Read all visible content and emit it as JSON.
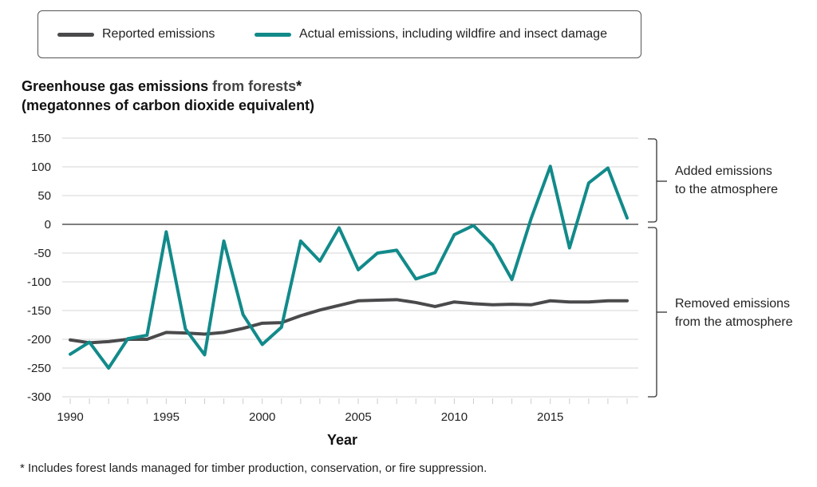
{
  "legend": {
    "reported": "Reported emissions",
    "actual": "Actual emissions, including wildfire and insect damage"
  },
  "title": {
    "line1_a": "Greenhouse gas emissions ",
    "line1_b": "from forests",
    "line1_c": "*",
    "line2": "(megatonnes of carbon dioxide equivalent)"
  },
  "annotations": {
    "added_1": "Added emissions",
    "added_2": "to the atmosphere",
    "removed_1": "Removed emissions",
    "removed_2": "from the atmosphere"
  },
  "footnote": "* Includes forest lands managed for timber production, conservation, or fire suppression.",
  "colors": {
    "reported": "#4a4a4c",
    "actual": "#128a8a"
  },
  "chart_data": {
    "type": "line",
    "xlabel": "Year",
    "ylabel": "",
    "ylim": [
      -300,
      150
    ],
    "xlim": [
      1990,
      2019
    ],
    "yticks": [
      150,
      100,
      50,
      0,
      -50,
      -100,
      -150,
      -200,
      -250,
      -300
    ],
    "xticks": [
      1990,
      1995,
      2000,
      2005,
      2010,
      2015
    ],
    "grid": true,
    "legend_position": "top",
    "x": [
      1990,
      1991,
      1992,
      1993,
      1994,
      1995,
      1996,
      1997,
      1998,
      1999,
      2000,
      2001,
      2002,
      2003,
      2004,
      2005,
      2006,
      2007,
      2008,
      2009,
      2010,
      2011,
      2012,
      2013,
      2014,
      2015,
      2016,
      2017,
      2018,
      2019
    ],
    "series": [
      {
        "name": "Reported emissions",
        "color": "#4a4a4c",
        "values": [
          -201,
          -206,
          -204,
          -200,
          -200,
          -188,
          -189,
          -191,
          -188,
          -181,
          -172,
          -171,
          -159,
          -149,
          -141,
          -133,
          -132,
          -131,
          -136,
          -143,
          -135,
          -138,
          -140,
          -139,
          -140,
          -133,
          -135,
          -135,
          -133,
          -133
        ]
      },
      {
        "name": "Actual emissions, including wildfire and insect damage",
        "color": "#128a8a",
        "values": [
          -226,
          -205,
          -250,
          -199,
          -193,
          -13,
          -182,
          -227,
          -29,
          -157,
          -209,
          -179,
          -29,
          -64,
          -6,
          -79,
          -50,
          -45,
          -95,
          -84,
          -18,
          -2,
          -36,
          -96,
          10,
          101,
          -41,
          72,
          98,
          11
        ]
      }
    ]
  }
}
